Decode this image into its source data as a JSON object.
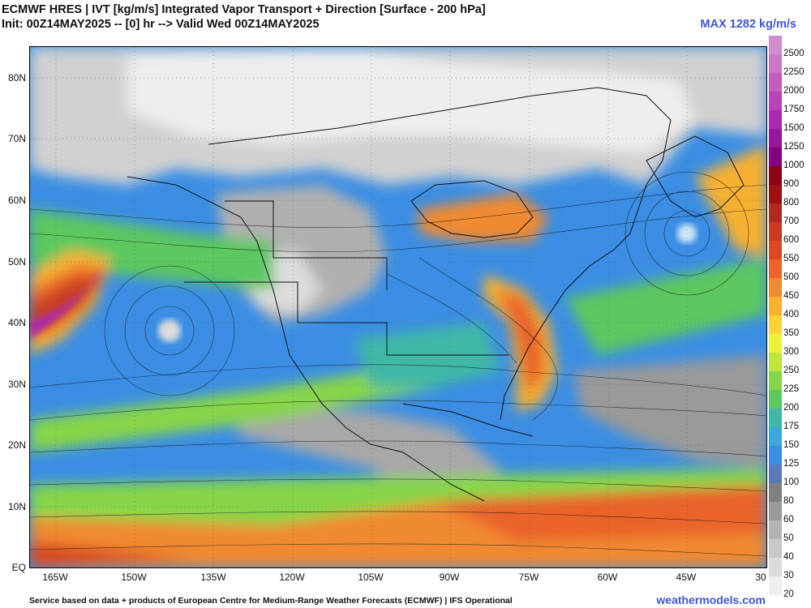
{
  "header": {
    "title": "ECMWF HRES | IVT [kg/m/s] Integrated Vapor Transport + Direction [Surface - 200 hPa]",
    "subtitle": "Init: 00Z14MAY2025 -- [0] hr --> Valid Wed 00Z14MAY2025",
    "max_label": "MAX 1282 kg/m/s"
  },
  "map": {
    "lat_labels": [
      "80N",
      "70N",
      "60N",
      "50N",
      "40N",
      "30N",
      "20N",
      "10N",
      "EQ"
    ],
    "lon_labels": [
      "165W",
      "150W",
      "135W",
      "120W",
      "105W",
      "90W",
      "75W",
      "60W",
      "45W",
      "30"
    ]
  },
  "colorbar": {
    "levels": [
      "2500",
      "2250",
      "2000",
      "1750",
      "1500",
      "1250",
      "1000",
      "900",
      "800",
      "700",
      "600",
      "550",
      "500",
      "450",
      "400",
      "350",
      "300",
      "250",
      "225",
      "200",
      "175",
      "150",
      "125",
      "100",
      "80",
      "60",
      "50",
      "40",
      "30",
      "20"
    ],
    "colors": [
      "#cf8ccf",
      "#c978c6",
      "#c05dbf",
      "#b845b8",
      "#ad2aac",
      "#9a1598",
      "#86007f",
      "#8a0014",
      "#9b1010",
      "#b12a20",
      "#c73c22",
      "#da4a22",
      "#e9632a",
      "#f08a30",
      "#f6b032",
      "#fbd23a",
      "#eef03c",
      "#bfe640",
      "#87d64a",
      "#5cc85e",
      "#3fb8a6",
      "#3aa8da",
      "#3b8ee3",
      "#5a7ab8",
      "#808080",
      "#9a9a9a",
      "#b3b3b3",
      "#c8c8c8",
      "#dcdcdc",
      "#eeeeee"
    ]
  },
  "footer": {
    "credit": "Service based on data + products of European Centre for Medium-Range Weather Forecasts (ECMWF) | IFS Operational",
    "site": "weathermodels.com"
  }
}
